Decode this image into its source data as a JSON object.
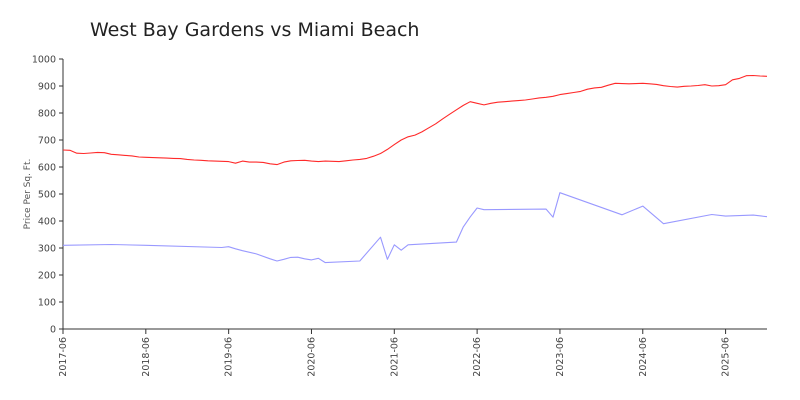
{
  "chart_data": {
    "type": "line",
    "title": "West Bay Gardens vs Miami Beach",
    "xlabel": "",
    "ylabel": "Price Per Sq. Ft.",
    "ylim": [
      0,
      1000
    ],
    "yticks": [
      0,
      100,
      200,
      300,
      400,
      500,
      600,
      700,
      800,
      900,
      1000
    ],
    "xlim": [
      "2017-06",
      "2025-12"
    ],
    "xticks": [
      "2017-06",
      "2018-06",
      "2019-06",
      "2020-06",
      "2021-06",
      "2022-06",
      "2023-06",
      "2024-06",
      "2025-06"
    ],
    "grid": false,
    "legend": "none",
    "series": [
      {
        "color": "#ff2a2a",
        "points": [
          [
            "2017-06",
            663
          ],
          [
            "2017-07",
            662
          ],
          [
            "2017-08",
            651
          ],
          [
            "2017-09",
            650
          ],
          [
            "2017-10",
            652
          ],
          [
            "2017-11",
            654
          ],
          [
            "2017-12",
            653
          ],
          [
            "2018-01",
            647
          ],
          [
            "2018-02",
            645
          ],
          [
            "2018-03",
            643
          ],
          [
            "2018-04",
            641
          ],
          [
            "2018-05",
            637
          ],
          [
            "2018-06",
            636
          ],
          [
            "2018-07",
            635
          ],
          [
            "2018-08",
            634
          ],
          [
            "2018-09",
            633
          ],
          [
            "2018-10",
            632
          ],
          [
            "2018-11",
            631
          ],
          [
            "2018-12",
            628
          ],
          [
            "2019-01",
            626
          ],
          [
            "2019-02",
            625
          ],
          [
            "2019-03",
            623
          ],
          [
            "2019-04",
            622
          ],
          [
            "2019-05",
            621
          ],
          [
            "2019-06",
            620
          ],
          [
            "2019-07",
            614
          ],
          [
            "2019-08",
            622
          ],
          [
            "2019-09",
            618
          ],
          [
            "2019-10",
            618
          ],
          [
            "2019-11",
            617
          ],
          [
            "2019-12",
            612
          ],
          [
            "2020-01",
            609
          ],
          [
            "2020-02",
            618
          ],
          [
            "2020-03",
            623
          ],
          [
            "2020-04",
            624
          ],
          [
            "2020-05",
            625
          ],
          [
            "2020-06",
            622
          ],
          [
            "2020-07",
            620
          ],
          [
            "2020-08",
            622
          ],
          [
            "2020-09",
            621
          ],
          [
            "2020-10",
            620
          ],
          [
            "2020-11",
            623
          ],
          [
            "2020-12",
            626
          ],
          [
            "2021-01",
            628
          ],
          [
            "2021-02",
            632
          ],
          [
            "2021-03",
            640
          ],
          [
            "2021-04",
            650
          ],
          [
            "2021-05",
            665
          ],
          [
            "2021-06",
            683
          ],
          [
            "2021-07",
            700
          ],
          [
            "2021-08",
            712
          ],
          [
            "2021-09",
            718
          ],
          [
            "2021-10",
            730
          ],
          [
            "2021-11",
            745
          ],
          [
            "2021-12",
            760
          ],
          [
            "2022-01",
            778
          ],
          [
            "2022-02",
            795
          ],
          [
            "2022-03",
            812
          ],
          [
            "2022-04",
            828
          ],
          [
            "2022-05",
            842
          ],
          [
            "2022-06",
            836
          ],
          [
            "2022-07",
            830
          ],
          [
            "2022-08",
            836
          ],
          [
            "2022-09",
            840
          ],
          [
            "2022-10",
            842
          ],
          [
            "2022-11",
            844
          ],
          [
            "2022-12",
            846
          ],
          [
            "2023-01",
            848
          ],
          [
            "2023-02",
            852
          ],
          [
            "2023-03",
            856
          ],
          [
            "2023-04",
            858
          ],
          [
            "2023-05",
            862
          ],
          [
            "2023-06",
            868
          ],
          [
            "2023-07",
            872
          ],
          [
            "2023-08",
            876
          ],
          [
            "2023-09",
            880
          ],
          [
            "2023-10",
            888
          ],
          [
            "2023-11",
            893
          ],
          [
            "2023-12",
            895
          ],
          [
            "2024-01",
            903
          ],
          [
            "2024-02",
            910
          ],
          [
            "2024-03",
            909
          ],
          [
            "2024-04",
            908
          ],
          [
            "2024-05",
            909
          ],
          [
            "2024-06",
            910
          ],
          [
            "2024-07",
            908
          ],
          [
            "2024-08",
            906
          ],
          [
            "2024-09",
            901
          ],
          [
            "2024-10",
            898
          ],
          [
            "2024-11",
            896
          ],
          [
            "2024-12",
            899
          ],
          [
            "2025-01",
            900
          ],
          [
            "2025-02",
            902
          ],
          [
            "2025-03",
            905
          ],
          [
            "2025-04",
            900
          ],
          [
            "2025-05",
            901
          ],
          [
            "2025-06",
            905
          ],
          [
            "2025-07",
            923
          ],
          [
            "2025-08",
            928
          ],
          [
            "2025-09",
            938
          ],
          [
            "2025-10",
            939
          ],
          [
            "2025-11",
            937
          ],
          [
            "2025-12",
            936
          ]
        ]
      },
      {
        "color": "#9999ff",
        "points": [
          [
            "2017-06",
            310
          ],
          [
            "2018-01",
            313
          ],
          [
            "2018-06",
            310
          ],
          [
            "2019-05",
            302
          ],
          [
            "2019-06",
            305
          ],
          [
            "2019-07",
            297
          ],
          [
            "2019-08",
            290
          ],
          [
            "2019-10",
            278
          ],
          [
            "2019-12",
            260
          ],
          [
            "2020-01",
            252
          ],
          [
            "2020-02",
            258
          ],
          [
            "2020-03",
            265
          ],
          [
            "2020-04",
            266
          ],
          [
            "2020-05",
            260
          ],
          [
            "2020-06",
            256
          ],
          [
            "2020-07",
            262
          ],
          [
            "2020-08",
            246
          ],
          [
            "2021-01",
            252
          ],
          [
            "2021-04",
            340
          ],
          [
            "2021-05",
            258
          ],
          [
            "2021-06",
            312
          ],
          [
            "2021-07",
            292
          ],
          [
            "2021-08",
            312
          ],
          [
            "2022-03",
            322
          ],
          [
            "2022-04",
            378
          ],
          [
            "2022-05",
            415
          ],
          [
            "2022-06",
            448
          ],
          [
            "2022-07",
            442
          ],
          [
            "2023-04",
            444
          ],
          [
            "2023-05",
            414
          ],
          [
            "2023-06",
            505
          ],
          [
            "2024-03",
            423
          ],
          [
            "2024-06",
            455
          ],
          [
            "2024-09",
            390
          ],
          [
            "2025-04",
            424
          ],
          [
            "2025-06",
            418
          ],
          [
            "2025-10",
            422
          ],
          [
            "2025-12",
            416
          ]
        ]
      }
    ]
  }
}
